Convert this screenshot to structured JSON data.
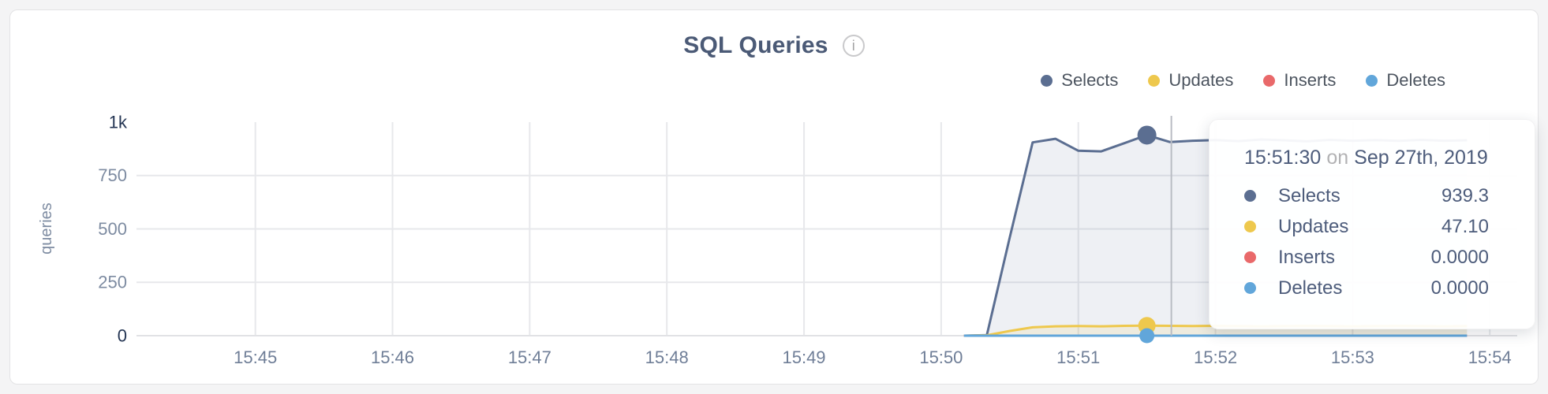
{
  "header": {
    "title": "SQL Queries",
    "info_glyph": "i"
  },
  "legend": {
    "items": [
      {
        "label": "Selects",
        "color": "#5b6e91"
      },
      {
        "label": "Updates",
        "color": "#eec84d"
      },
      {
        "label": "Inserts",
        "color": "#e9696a"
      },
      {
        "label": "Deletes",
        "color": "#61a6da"
      }
    ]
  },
  "chart_data": {
    "type": "area",
    "title": "SQL Queries",
    "ylabel": "queries",
    "ylim": [
      0,
      1000
    ],
    "grid": true,
    "legend_position": "top-right",
    "y_ticks": [
      {
        "label": "1k",
        "value": 1000
      },
      {
        "label": "750",
        "value": 750
      },
      {
        "label": "500",
        "value": 500
      },
      {
        "label": "250",
        "value": 250
      },
      {
        "label": "0",
        "value": 0
      }
    ],
    "x_ticks": [
      {
        "label": "15:45",
        "time": "15:45:00"
      },
      {
        "label": "15:46",
        "time": "15:46:00"
      },
      {
        "label": "15:47",
        "time": "15:47:00"
      },
      {
        "label": "15:48",
        "time": "15:48:00"
      },
      {
        "label": "15:49",
        "time": "15:49:00"
      },
      {
        "label": "15:50",
        "time": "15:50:00"
      },
      {
        "label": "15:51",
        "time": "15:51:00"
      },
      {
        "label": "15:52",
        "time": "15:52:00"
      },
      {
        "label": "15:53",
        "time": "15:53:00"
      },
      {
        "label": "15:54",
        "time": "15:54:00"
      }
    ],
    "x_domain": [
      "15:44:08",
      "15:54:12"
    ],
    "sample_times": [
      "15:50:10",
      "15:50:20",
      "15:50:30",
      "15:50:40",
      "15:50:50",
      "15:51:00",
      "15:51:10",
      "15:51:20",
      "15:51:30",
      "15:51:40",
      "15:51:50",
      "15:52:00",
      "15:52:10",
      "15:52:20",
      "15:52:30",
      "15:52:40",
      "15:52:50",
      "15:53:00",
      "15:53:10",
      "15:53:20",
      "15:53:30",
      "15:53:40",
      "15:53:50"
    ],
    "series": [
      {
        "name": "Selects",
        "color": "#5b6e91",
        "fill": "rgba(91,110,145,0.10)",
        "values": [
          0,
          3,
          460,
          905,
          922,
          866,
          863,
          901,
          939.3,
          907,
          913,
          916,
          911,
          919,
          915,
          910,
          917,
          913,
          916,
          912,
          917,
          913,
          915
        ]
      },
      {
        "name": "Updates",
        "color": "#eec84d",
        "fill": "rgba(238,200,77,0.13)",
        "values": [
          0,
          2,
          22,
          39,
          44,
          45,
          44,
          46,
          47.1,
          46,
          45,
          46,
          45,
          44,
          45,
          46,
          45,
          44,
          45,
          46,
          45,
          44,
          45
        ]
      },
      {
        "name": "Inserts",
        "color": "#e9696a",
        "fill": "none",
        "values": [
          0,
          0,
          0,
          0,
          0,
          0,
          0,
          0,
          0,
          0,
          0,
          0,
          0,
          0,
          0,
          0,
          0,
          0,
          0,
          0,
          0,
          0,
          0
        ]
      },
      {
        "name": "Deletes",
        "color": "#61a6da",
        "fill": "none",
        "values": [
          0,
          0,
          0,
          0,
          0,
          0,
          0,
          0,
          0,
          0,
          0,
          0,
          0,
          0,
          0,
          0,
          0,
          0,
          0,
          0,
          0,
          0,
          0
        ]
      }
    ],
    "hover": {
      "time": "15:51:30"
    }
  },
  "tooltip": {
    "time": "15:51:30",
    "conjunction": "on",
    "date": "Sep 27th, 2019",
    "rows": [
      {
        "label": "Selects",
        "value": "939.3",
        "color": "#5b6e91"
      },
      {
        "label": "Updates",
        "value": "47.10",
        "color": "#eec84d"
      },
      {
        "label": "Inserts",
        "value": "0.0000",
        "color": "#e9696a"
      },
      {
        "label": "Deletes",
        "value": "0.0000",
        "color": "#61a6da"
      }
    ]
  }
}
